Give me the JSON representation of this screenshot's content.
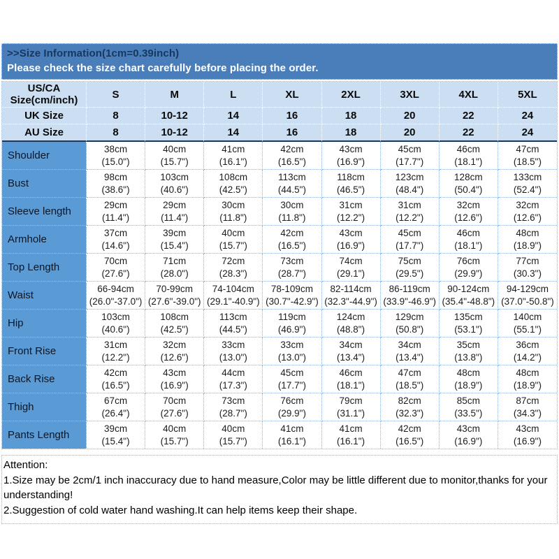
{
  "banner": {
    "title": ">>Size Information(1cm=0.39inch)",
    "subtitle": "Please check the size chart carefully before placing the order."
  },
  "table": {
    "corner": {
      "line1": "US/CA",
      "line2": "Size(cm/inch)"
    },
    "size_columns": [
      "S",
      "M",
      "L",
      "XL",
      "2XL",
      "3XL",
      "4XL",
      "5XL"
    ],
    "header_rows": [
      {
        "label": "UK Size",
        "values": [
          "8",
          "10-12",
          "14",
          "16",
          "18",
          "20",
          "22",
          "24"
        ]
      },
      {
        "label": "AU Size",
        "values": [
          "8",
          "10-12",
          "14",
          "16",
          "18",
          "20",
          "22",
          "24"
        ]
      }
    ],
    "measurement_rows": [
      {
        "label": "Shoulder",
        "cells": [
          {
            "cm": "38cm",
            "inch": "(15.0\")"
          },
          {
            "cm": "40cm",
            "inch": "(15.7\")"
          },
          {
            "cm": "41cm",
            "inch": "(16.1\")"
          },
          {
            "cm": "42cm",
            "inch": "(16.5\")"
          },
          {
            "cm": "43cm",
            "inch": "(16.9\")"
          },
          {
            "cm": "45cm",
            "inch": "(17.7\")"
          },
          {
            "cm": "46cm",
            "inch": "(18.1\")"
          },
          {
            "cm": "47cm",
            "inch": "(18.5\")"
          }
        ]
      },
      {
        "label": "Bust",
        "cells": [
          {
            "cm": "98cm",
            "inch": "(38.6\")"
          },
          {
            "cm": "103cm",
            "inch": "(40.6\")"
          },
          {
            "cm": "108cm",
            "inch": "(42.5\")"
          },
          {
            "cm": "113cm",
            "inch": "(44.5\")"
          },
          {
            "cm": "118cm",
            "inch": "(46.5\")"
          },
          {
            "cm": "123cm",
            "inch": "(48.4\")"
          },
          {
            "cm": "128cm",
            "inch": "(50.4\")"
          },
          {
            "cm": "133cm",
            "inch": "(52.4\")"
          }
        ]
      },
      {
        "label": "Sleeve length",
        "cells": [
          {
            "cm": "29cm",
            "inch": "(11.4\")"
          },
          {
            "cm": "29cm",
            "inch": "(11.4\")"
          },
          {
            "cm": "30cm",
            "inch": "(11.8\")"
          },
          {
            "cm": "30cm",
            "inch": "(11.8\")"
          },
          {
            "cm": "31cm",
            "inch": "(12.2\")"
          },
          {
            "cm": "31cm",
            "inch": "(12.2\")"
          },
          {
            "cm": "32cm",
            "inch": "(12.6\")"
          },
          {
            "cm": "32cm",
            "inch": "(12.6\")"
          }
        ]
      },
      {
        "label": "Armhole",
        "cells": [
          {
            "cm": "37cm",
            "inch": "(14.6\")"
          },
          {
            "cm": "39cm",
            "inch": "(15.4\")"
          },
          {
            "cm": "40cm",
            "inch": "(15.7\")"
          },
          {
            "cm": "42cm",
            "inch": "(16.5\")"
          },
          {
            "cm": "43cm",
            "inch": "(16.9\")"
          },
          {
            "cm": "45cm",
            "inch": "(17.7\")"
          },
          {
            "cm": "46cm",
            "inch": "(18.1\")"
          },
          {
            "cm": "48cm",
            "inch": "(18.9\")"
          }
        ]
      },
      {
        "label": "Top Length",
        "cells": [
          {
            "cm": "70cm",
            "inch": "(27.6\")"
          },
          {
            "cm": "71cm",
            "inch": "(28.0\")"
          },
          {
            "cm": "72cm",
            "inch": "(28.3\")"
          },
          {
            "cm": "73cm",
            "inch": "(28.7\")"
          },
          {
            "cm": "74cm",
            "inch": "(29.1\")"
          },
          {
            "cm": "75cm",
            "inch": "(29.5\")"
          },
          {
            "cm": "76cm",
            "inch": "(29.9\")"
          },
          {
            "cm": "77cm",
            "inch": "(30.3\")"
          }
        ]
      },
      {
        "label": "Waist",
        "cells": [
          {
            "cm": "66-94cm",
            "inch": "(26.0\"-37.0\")"
          },
          {
            "cm": "70-99cm",
            "inch": "(27.6\"-39.0\")"
          },
          {
            "cm": "74-104cm",
            "inch": "(29.1\"-40.9\")"
          },
          {
            "cm": "78-109cm",
            "inch": "(30.7\"-42.9\")"
          },
          {
            "cm": "82-114cm",
            "inch": "(32.3\"-44.9\")"
          },
          {
            "cm": "86-119cm",
            "inch": "(33.9\"-46.9\")"
          },
          {
            "cm": "90-124cm",
            "inch": "(35.4\"-48.8\")"
          },
          {
            "cm": "94-129cm",
            "inch": "(37.0\"-50.8\")"
          }
        ]
      },
      {
        "label": "Hip",
        "cells": [
          {
            "cm": "103cm",
            "inch": "(40.6\")"
          },
          {
            "cm": "108cm",
            "inch": "(42.5\")"
          },
          {
            "cm": "113cm",
            "inch": "(44.5\")"
          },
          {
            "cm": "119cm",
            "inch": "(46.9\")"
          },
          {
            "cm": "124cm",
            "inch": "(48.8\")"
          },
          {
            "cm": "129cm",
            "inch": "(50.8\")"
          },
          {
            "cm": "135cm",
            "inch": "(53.1\")"
          },
          {
            "cm": "140cm",
            "inch": "(55.1\")"
          }
        ]
      },
      {
        "label": "Front Rise",
        "cells": [
          {
            "cm": "31cm",
            "inch": "(12.2\")"
          },
          {
            "cm": "32cm",
            "inch": "(12.6\")"
          },
          {
            "cm": "33cm",
            "inch": "(13.0\")"
          },
          {
            "cm": "33cm",
            "inch": "(13.0\")"
          },
          {
            "cm": "34cm",
            "inch": "(13.4\")"
          },
          {
            "cm": "34cm",
            "inch": "(13.4\")"
          },
          {
            "cm": "35cm",
            "inch": "(13.8\")"
          },
          {
            "cm": "36cm",
            "inch": "(14.2\")"
          }
        ]
      },
      {
        "label": "Back Rise",
        "cells": [
          {
            "cm": "42cm",
            "inch": "(16.5\")"
          },
          {
            "cm": "43cm",
            "inch": "(16.9\")"
          },
          {
            "cm": "44cm",
            "inch": "(17.3\")"
          },
          {
            "cm": "45cm",
            "inch": "(17.7\")"
          },
          {
            "cm": "46cm",
            "inch": "(18.1\")"
          },
          {
            "cm": "47cm",
            "inch": "(18.5\")"
          },
          {
            "cm": "48cm",
            "inch": "(18.9\")"
          },
          {
            "cm": "48cm",
            "inch": "(18.9\")"
          }
        ]
      },
      {
        "label": "Thigh",
        "cells": [
          {
            "cm": "67cm",
            "inch": "(26.4\")"
          },
          {
            "cm": "70cm",
            "inch": "(27.6\")"
          },
          {
            "cm": "73cm",
            "inch": "(28.7\")"
          },
          {
            "cm": "76cm",
            "inch": "(29.9\")"
          },
          {
            "cm": "79cm",
            "inch": "(31.1\")"
          },
          {
            "cm": "82cm",
            "inch": "(32.3\")"
          },
          {
            "cm": "85cm",
            "inch": "(33.5\")"
          },
          {
            "cm": "87cm",
            "inch": "(34.3\")"
          }
        ]
      },
      {
        "label": "Pants Length",
        "cells": [
          {
            "cm": "39cm",
            "inch": "(15.4\")"
          },
          {
            "cm": "40cm",
            "inch": "(15.7\")"
          },
          {
            "cm": "40cm",
            "inch": "(15.7\")"
          },
          {
            "cm": "41cm",
            "inch": "(16.1\")"
          },
          {
            "cm": "41cm",
            "inch": "(16.1\")"
          },
          {
            "cm": "42cm",
            "inch": "(16.5\")"
          },
          {
            "cm": "43cm",
            "inch": "(16.9\")"
          },
          {
            "cm": "43cm",
            "inch": "(16.9\")"
          }
        ]
      }
    ]
  },
  "attention": {
    "heading": "Attention:",
    "notes": [
      "1.Size may be 2cm/1 inch inaccuracy due to hand measure,Color may be little different due to monitor,thanks for your understanding!",
      "2.Suggestion of cold water hand washing.It can help items keep their shape."
    ]
  },
  "colors": {
    "banner_blue": "#4a7ebb",
    "banner_title_navy": "#17375e",
    "header_light_blue": "#cbdef2",
    "label_column_blue": "#5b9bd5",
    "divider_navy": "#17375e",
    "dotted_border_blue": "#95b3d7"
  }
}
